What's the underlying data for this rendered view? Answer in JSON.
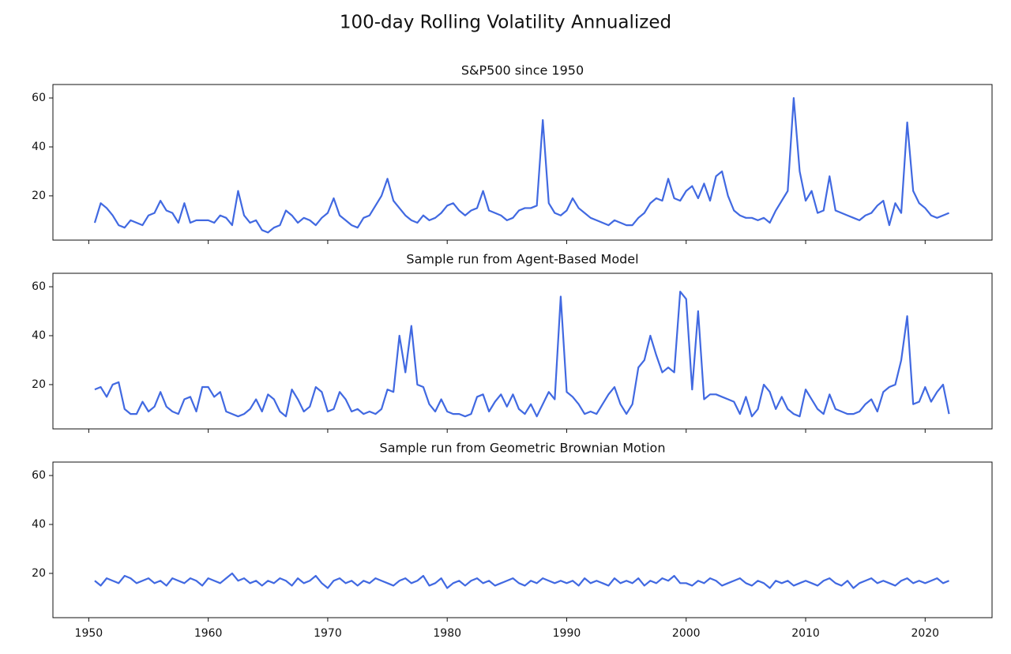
{
  "title": "100-day Rolling Volatility Annualized",
  "chart_data": [
    {
      "type": "line",
      "title": "S&P500 since 1950",
      "color": "#4169e1",
      "xlim": [
        1947.0,
        2025.6
      ],
      "ylim": [
        1.9,
        65.5
      ],
      "yticks": [
        20,
        40,
        60
      ],
      "xticks": [
        1950,
        1960,
        1970,
        1980,
        1990,
        2000,
        2010,
        2020
      ],
      "xtick_labels": false,
      "x": [
        1950.5,
        1951,
        1951.5,
        1952,
        1952.5,
        1953,
        1953.5,
        1954,
        1954.5,
        1955,
        1955.5,
        1956,
        1956.5,
        1957,
        1957.5,
        1958,
        1958.5,
        1959,
        1959.5,
        1960,
        1960.5,
        1961,
        1961.5,
        1962,
        1962.5,
        1963,
        1963.5,
        1964,
        1964.5,
        1965,
        1965.5,
        1966,
        1966.5,
        1967,
        1967.5,
        1968,
        1968.5,
        1969,
        1969.5,
        1970,
        1970.5,
        1971,
        1971.5,
        1972,
        1972.5,
        1973,
        1973.5,
        1974,
        1974.5,
        1975,
        1975.5,
        1976,
        1976.5,
        1977,
        1977.5,
        1978,
        1978.5,
        1979,
        1979.5,
        1980,
        1980.5,
        1981,
        1981.5,
        1982,
        1982.5,
        1983,
        1983.5,
        1984,
        1984.5,
        1985,
        1985.5,
        1986,
        1986.5,
        1987,
        1987.5,
        1988,
        1988.5,
        1989,
        1989.5,
        1990,
        1990.5,
        1991,
        1991.5,
        1992,
        1992.5,
        1993,
        1993.5,
        1994,
        1994.5,
        1995,
        1995.5,
        1996,
        1996.5,
        1997,
        1997.5,
        1998,
        1998.5,
        1999,
        1999.5,
        2000,
        2000.5,
        2001,
        2001.5,
        2002,
        2002.5,
        2003,
        2003.5,
        2004,
        2004.5,
        2005,
        2005.5,
        2006,
        2006.5,
        2007,
        2007.5,
        2008,
        2008.5,
        2009,
        2009.5,
        2010,
        2010.5,
        2011,
        2011.5,
        2012,
        2012.5,
        2013,
        2013.5,
        2014,
        2014.5,
        2015,
        2015.5,
        2016,
        2016.5,
        2017,
        2017.5,
        2018,
        2018.5,
        2019,
        2019.5,
        2020,
        2020.5,
        2021,
        2021.5,
        2022
      ],
      "values": [
        9,
        17,
        15,
        12,
        8,
        7,
        10,
        9,
        8,
        12,
        13,
        18,
        14,
        13,
        9,
        17,
        9,
        10,
        10,
        10,
        9,
        12,
        11,
        8,
        22,
        12,
        9,
        10,
        6,
        5,
        7,
        8,
        14,
        12,
        9,
        11,
        10,
        8,
        11,
        13,
        19,
        12,
        10,
        8,
        7,
        11,
        12,
        16,
        20,
        27,
        18,
        15,
        12,
        10,
        9,
        12,
        10,
        11,
        13,
        16,
        17,
        14,
        12,
        14,
        15,
        22,
        14,
        13,
        12,
        10,
        11,
        14,
        15,
        15,
        16,
        51,
        17,
        13,
        12,
        14,
        19,
        15,
        13,
        11,
        10,
        9,
        8,
        10,
        9,
        8,
        8,
        11,
        13,
        17,
        19,
        18,
        27,
        19,
        18,
        22,
        24,
        19,
        25,
        18,
        28,
        30,
        20,
        14,
        12,
        11,
        11,
        10,
        11,
        9,
        14,
        18,
        22,
        60,
        30,
        18,
        22,
        13,
        14,
        28,
        14,
        13,
        12,
        11,
        10,
        12,
        13,
        16,
        18,
        8,
        17,
        13,
        50,
        22,
        17,
        15,
        12,
        11,
        12,
        13
      ]
    },
    {
      "type": "line",
      "title": "Sample run from Agent-Based Model",
      "color": "#4169e1",
      "xlim": [
        1947.0,
        2025.6
      ],
      "ylim": [
        1.9,
        65.5
      ],
      "yticks": [
        20,
        40,
        60
      ],
      "xticks": [
        1950,
        1960,
        1970,
        1980,
        1990,
        2000,
        2010,
        2020
      ],
      "xtick_labels": false,
      "x": [
        1950.5,
        1951,
        1951.5,
        1952,
        1952.5,
        1953,
        1953.5,
        1954,
        1954.5,
        1955,
        1955.5,
        1956,
        1956.5,
        1957,
        1957.5,
        1958,
        1958.5,
        1959,
        1959.5,
        1960,
        1960.5,
        1961,
        1961.5,
        1962,
        1962.5,
        1963,
        1963.5,
        1964,
        1964.5,
        1965,
        1965.5,
        1966,
        1966.5,
        1967,
        1967.5,
        1968,
        1968.5,
        1969,
        1969.5,
        1970,
        1970.5,
        1971,
        1971.5,
        1972,
        1972.5,
        1973,
        1973.5,
        1974,
        1974.5,
        1975,
        1975.5,
        1976,
        1976.5,
        1977,
        1977.5,
        1978,
        1978.5,
        1979,
        1979.5,
        1980,
        1980.5,
        1981,
        1981.5,
        1982,
        1982.5,
        1983,
        1983.5,
        1984,
        1984.5,
        1985,
        1985.5,
        1986,
        1986.5,
        1987,
        1987.5,
        1988,
        1988.5,
        1989,
        1989.5,
        1990,
        1990.5,
        1991,
        1991.5,
        1992,
        1992.5,
        1993,
        1993.5,
        1994,
        1994.5,
        1995,
        1995.5,
        1996,
        1996.5,
        1997,
        1997.5,
        1998,
        1998.5,
        1999,
        1999.5,
        2000,
        2000.5,
        2001,
        2001.5,
        2002,
        2002.5,
        2003,
        2003.5,
        2004,
        2004.5,
        2005,
        2005.5,
        2006,
        2006.5,
        2007,
        2007.5,
        2008,
        2008.5,
        2009,
        2009.5,
        2010,
        2010.5,
        2011,
        2011.5,
        2012,
        2012.5,
        2013,
        2013.5,
        2014,
        2014.5,
        2015,
        2015.5,
        2016,
        2016.5,
        2017,
        2017.5,
        2018,
        2018.5,
        2019,
        2019.5,
        2020,
        2020.5,
        2021,
        2021.5,
        2022
      ],
      "values": [
        18,
        19,
        15,
        20,
        21,
        10,
        8,
        8,
        13,
        9,
        11,
        17,
        11,
        9,
        8,
        14,
        15,
        9,
        19,
        19,
        15,
        17,
        9,
        8,
        7,
        8,
        10,
        14,
        9,
        16,
        14,
        9,
        7,
        18,
        14,
        9,
        11,
        19,
        17,
        9,
        10,
        17,
        14,
        9,
        10,
        8,
        9,
        8,
        10,
        18,
        17,
        40,
        25,
        44,
        20,
        19,
        12,
        9,
        14,
        9,
        8,
        8,
        7,
        8,
        15,
        16,
        9,
        13,
        16,
        11,
        16,
        10,
        8,
        12,
        7,
        12,
        17,
        14,
        56,
        17,
        15,
        12,
        8,
        9,
        8,
        12,
        16,
        19,
        12,
        8,
        12,
        27,
        30,
        40,
        32,
        25,
        27,
        25,
        58,
        55,
        18,
        50,
        14,
        16,
        16,
        15,
        14,
        13,
        8,
        15,
        7,
        10,
        20,
        17,
        10,
        15,
        10,
        8,
        7,
        18,
        14,
        10,
        8,
        16,
        10,
        9,
        8,
        8,
        9,
        12,
        14,
        9,
        17,
        19,
        20,
        30,
        48,
        12,
        13,
        19,
        13,
        17,
        20,
        8
      ]
    },
    {
      "type": "line",
      "title": "Sample run from Geometric Brownian Motion",
      "color": "#4169e1",
      "xlim": [
        1947.0,
        2025.6
      ],
      "ylim": [
        1.9,
        65.5
      ],
      "yticks": [
        20,
        40,
        60
      ],
      "xticks": [
        1950,
        1960,
        1970,
        1980,
        1990,
        2000,
        2010,
        2020
      ],
      "xtick_labels": true,
      "x": [
        1950.5,
        1951,
        1951.5,
        1952,
        1952.5,
        1953,
        1953.5,
        1954,
        1954.5,
        1955,
        1955.5,
        1956,
        1956.5,
        1957,
        1957.5,
        1958,
        1958.5,
        1959,
        1959.5,
        1960,
        1960.5,
        1961,
        1961.5,
        1962,
        1962.5,
        1963,
        1963.5,
        1964,
        1964.5,
        1965,
        1965.5,
        1966,
        1966.5,
        1967,
        1967.5,
        1968,
        1968.5,
        1969,
        1969.5,
        1970,
        1970.5,
        1971,
        1971.5,
        1972,
        1972.5,
        1973,
        1973.5,
        1974,
        1974.5,
        1975,
        1975.5,
        1976,
        1976.5,
        1977,
        1977.5,
        1978,
        1978.5,
        1979,
        1979.5,
        1980,
        1980.5,
        1981,
        1981.5,
        1982,
        1982.5,
        1983,
        1983.5,
        1984,
        1984.5,
        1985,
        1985.5,
        1986,
        1986.5,
        1987,
        1987.5,
        1988,
        1988.5,
        1989,
        1989.5,
        1990,
        1990.5,
        1991,
        1991.5,
        1992,
        1992.5,
        1993,
        1993.5,
        1994,
        1994.5,
        1995,
        1995.5,
        1996,
        1996.5,
        1997,
        1997.5,
        1998,
        1998.5,
        1999,
        1999.5,
        2000,
        2000.5,
        2001,
        2001.5,
        2002,
        2002.5,
        2003,
        2003.5,
        2004,
        2004.5,
        2005,
        2005.5,
        2006,
        2006.5,
        2007,
        2007.5,
        2008,
        2008.5,
        2009,
        2009.5,
        2010,
        2010.5,
        2011,
        2011.5,
        2012,
        2012.5,
        2013,
        2013.5,
        2014,
        2014.5,
        2015,
        2015.5,
        2016,
        2016.5,
        2017,
        2017.5,
        2018,
        2018.5,
        2019,
        2019.5,
        2020,
        2020.5,
        2021,
        2021.5,
        2022
      ],
      "values": [
        17,
        15,
        18,
        17,
        16,
        19,
        18,
        16,
        17,
        18,
        16,
        17,
        15,
        18,
        17,
        16,
        18,
        17,
        15,
        18,
        17,
        16,
        18,
        20,
        17,
        18,
        16,
        17,
        15,
        17,
        16,
        18,
        17,
        15,
        18,
        16,
        17,
        19,
        16,
        14,
        17,
        18,
        16,
        17,
        15,
        17,
        16,
        18,
        17,
        16,
        15,
        17,
        18,
        16,
        17,
        19,
        15,
        16,
        18,
        14,
        16,
        17,
        15,
        17,
        18,
        16,
        17,
        15,
        16,
        17,
        18,
        16,
        15,
        17,
        16,
        18,
        17,
        16,
        17,
        16,
        17,
        15,
        18,
        16,
        17,
        16,
        15,
        18,
        16,
        17,
        16,
        18,
        15,
        17,
        16,
        18,
        17,
        19,
        16,
        16,
        15,
        17,
        16,
        18,
        17,
        15,
        16,
        17,
        18,
        16,
        15,
        17,
        16,
        14,
        17,
        16,
        17,
        15,
        16,
        17,
        16,
        15,
        17,
        18,
        16,
        15,
        17,
        14,
        16,
        17,
        18,
        16,
        17,
        16,
        15,
        17,
        18,
        16,
        17,
        16,
        17,
        18,
        16,
        17
      ]
    }
  ]
}
